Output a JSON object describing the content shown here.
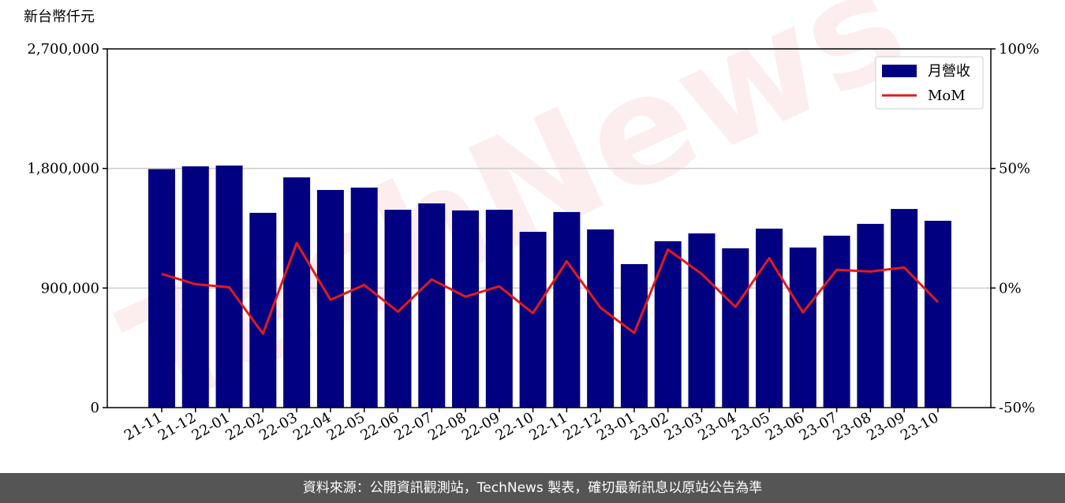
{
  "chart_data": {
    "type": "bar-line",
    "y_label": "新台幣仟元",
    "watermark": "TechNews",
    "categories": [
      "21-11",
      "21-12",
      "22-01",
      "22-02",
      "22-03",
      "22-04",
      "22-05",
      "22-06",
      "22-07",
      "22-08",
      "22-09",
      "22-10",
      "22-11",
      "22-12",
      "23-01",
      "23-02",
      "23-03",
      "23-04",
      "23-05",
      "23-06",
      "23-07",
      "23-08",
      "23-09",
      "23-10"
    ],
    "series": [
      {
        "name": "月營收",
        "type": "bar",
        "color": "#000080",
        "values": [
          1795000,
          1816000,
          1822000,
          1466000,
          1733000,
          1638000,
          1656000,
          1489000,
          1537000,
          1484000,
          1489000,
          1323000,
          1472000,
          1341000,
          1080000,
          1252000,
          1311000,
          1199000,
          1347000,
          1205000,
          1294000,
          1383000,
          1495000,
          1406000
        ]
      },
      {
        "name": "MoM",
        "type": "line",
        "axis": "y2",
        "color": "#e31a1c",
        "values": [
          5.9,
          1.6,
          0.3,
          -19.1,
          18.8,
          -4.9,
          1.3,
          -9.9,
          3.6,
          -3.6,
          0.7,
          -10.5,
          11.2,
          -8.2,
          -18.8,
          16.1,
          5.9,
          -7.9,
          12.5,
          -10.2,
          7.6,
          6.9,
          8.6,
          -5.9
        ]
      }
    ],
    "ylim": [
      0,
      2700000
    ],
    "yticks": [
      0,
      {
        "value": 900000,
        "label": "900,000"
      },
      {
        "value": 1800000,
        "label": "1,800,000"
      },
      {
        "value": 2700000,
        "label": "2,700,000"
      }
    ],
    "y2lim": [
      -50,
      100
    ],
    "y2ticks": [
      {
        "value": -50,
        "label": "-50%"
      },
      {
        "value": 0,
        "label": "0%"
      },
      {
        "value": 50,
        "label": "50%"
      },
      {
        "value": 100,
        "label": "100%"
      }
    ],
    "grid": true,
    "legend": "upper right",
    "footer": "資料來源：公開資訊觀測站，TechNews 製表，確切最新訊息以原站公告為準"
  }
}
